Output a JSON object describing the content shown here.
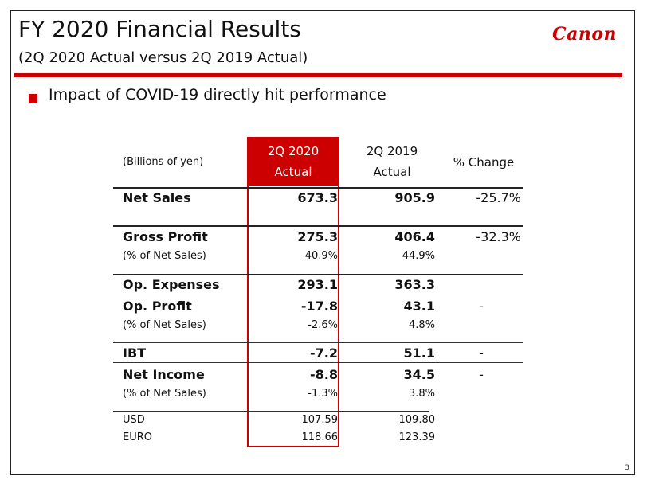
{
  "header": {
    "title": "FY 2020 Financial Results",
    "subtitle": "(2Q 2020 Actual versus 2Q 2019 Actual)",
    "logo_text": "Canon"
  },
  "bullet": "Impact of COVID-19 directly hit performance",
  "table": {
    "units": "(Billions of yen)",
    "columns": {
      "col_2020_line1": "2Q 2020",
      "col_2020_line2": "Actual",
      "col_2019_line1": "2Q 2019",
      "col_2019_line2": "Actual",
      "change": "% Change"
    },
    "rows": [
      {
        "label": "Net Sales",
        "v2020": "673.3",
        "v2019": "905.9",
        "change": "-25.7%"
      },
      {
        "label": "Gross Profit",
        "v2020": "275.3",
        "v2019": "406.4",
        "change": "-32.3%"
      },
      {
        "label": "(% of Net Sales)",
        "v2020": "40.9%",
        "v2019": "44.9%",
        "change": ""
      },
      {
        "label": "Op. Expenses",
        "v2020": "293.1",
        "v2019": "363.3",
        "change": ""
      },
      {
        "label": "Op. Profit",
        "v2020": "-17.8",
        "v2019": "43.1",
        "change": "-"
      },
      {
        "label": "(% of Net Sales)",
        "v2020": "-2.6%",
        "v2019": "4.8%",
        "change": ""
      },
      {
        "label": "IBT",
        "v2020": "-7.2",
        "v2019": "51.1",
        "change": "-"
      },
      {
        "label": "Net Income",
        "v2020": "-8.8",
        "v2019": "34.5",
        "change": "-"
      },
      {
        "label": "(% of Net Sales)",
        "v2020": "-1.3%",
        "v2019": "3.8%",
        "change": ""
      },
      {
        "label": "USD",
        "v2020": "107.59",
        "v2019": "109.80",
        "change": ""
      },
      {
        "label": "EURO",
        "v2020": "118.66",
        "v2019": "123.39",
        "change": ""
      }
    ]
  },
  "page_number": "3",
  "colors": {
    "accent": "#cc0000"
  }
}
